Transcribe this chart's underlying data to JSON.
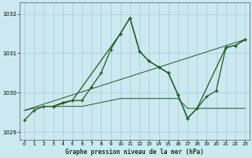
{
  "title": "Graphe pression niveau de la mer (hPa)",
  "bg_color": "#cce8f0",
  "grid_color": "#aaccdd",
  "line_color": "#1a5c1a",
  "ylim": [
    1028.8,
    1032.3
  ],
  "yticks": [
    1029,
    1030,
    1031,
    1032
  ],
  "xlim": [
    -0.5,
    23.5
  ],
  "xticks": [
    0,
    1,
    2,
    3,
    4,
    5,
    6,
    7,
    8,
    9,
    10,
    11,
    12,
    13,
    14,
    15,
    16,
    17,
    18,
    19,
    20,
    21,
    22,
    23
  ],
  "series": {
    "line_main": {
      "x": [
        0,
        1,
        2,
        3,
        4,
        5,
        6,
        7,
        8,
        9,
        10,
        11,
        12,
        13,
        14,
        15,
        16,
        17,
        18,
        19,
        20,
        21,
        22,
        23
      ],
      "y": [
        1029.3,
        1029.55,
        1029.65,
        1029.65,
        1029.75,
        1029.8,
        1029.8,
        1030.15,
        1030.5,
        1031.1,
        1031.5,
        1031.9,
        1031.05,
        1030.8,
        1030.65,
        1030.5,
        1029.95,
        1029.35,
        1029.6,
        1029.9,
        1030.05,
        1031.15,
        1031.2,
        1031.35
      ]
    },
    "line_diagonal": {
      "x": [
        0,
        23
      ],
      "y": [
        1029.55,
        1031.35
      ]
    },
    "line_flat_low": {
      "x": [
        0,
        2,
        3,
        4,
        5,
        6,
        7,
        8,
        9,
        10,
        11,
        12,
        13,
        14,
        15,
        16,
        17,
        18,
        23
      ],
      "y": [
        1029.55,
        1029.65,
        1029.65,
        1029.65,
        1029.65,
        1029.65,
        1029.7,
        1029.75,
        1029.8,
        1029.85,
        1029.85,
        1029.85,
        1029.85,
        1029.85,
        1029.85,
        1029.85,
        1029.6,
        1029.6,
        1029.6
      ]
    },
    "line_secondary": {
      "x": [
        3,
        5,
        10,
        11,
        12,
        13,
        14,
        15,
        16,
        17,
        18,
        21,
        22,
        23
      ],
      "y": [
        1029.65,
        1029.8,
        1031.5,
        1031.9,
        1031.05,
        1030.8,
        1030.65,
        1030.5,
        1029.95,
        1029.35,
        1029.6,
        1031.15,
        1031.2,
        1031.35
      ]
    }
  }
}
